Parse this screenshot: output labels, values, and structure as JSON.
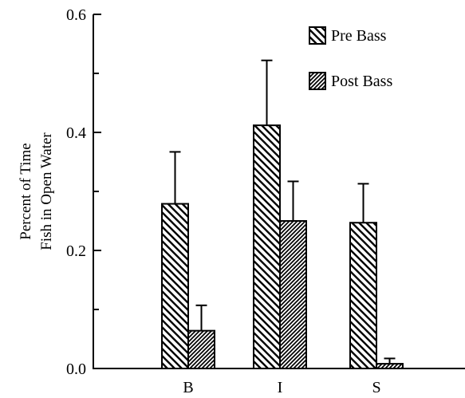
{
  "chart_data": {
    "type": "bar",
    "title": "",
    "xlabel": "",
    "ylabel": [
      "Percent of Time",
      "Fish in Open Water"
    ],
    "categories": [
      "B",
      "I",
      "S"
    ],
    "ylim": [
      0,
      0.6
    ],
    "yticks_major": [
      0.0,
      0.2,
      0.4,
      0.6
    ],
    "ytick_labels": [
      "0.0",
      "0.2",
      "0.4",
      "0.6"
    ],
    "yticks_minor": [
      0.1,
      0.3,
      0.5
    ],
    "grid": false,
    "legend_position": "top-right",
    "series": [
      {
        "name": "Pre Bass",
        "pattern": "back-diagonal-hatch",
        "values": [
          0.279,
          0.412,
          0.247
        ],
        "error_upper": [
          0.367,
          0.522,
          0.313
        ]
      },
      {
        "name": "Post Bass",
        "pattern": "forward-diagonal-hatch-dense",
        "values": [
          0.064,
          0.25,
          0.008
        ],
        "error_upper": [
          0.107,
          0.317,
          0.017
        ]
      }
    ],
    "colors": {
      "ink": "#000000",
      "fill": "#ffffff"
    }
  }
}
